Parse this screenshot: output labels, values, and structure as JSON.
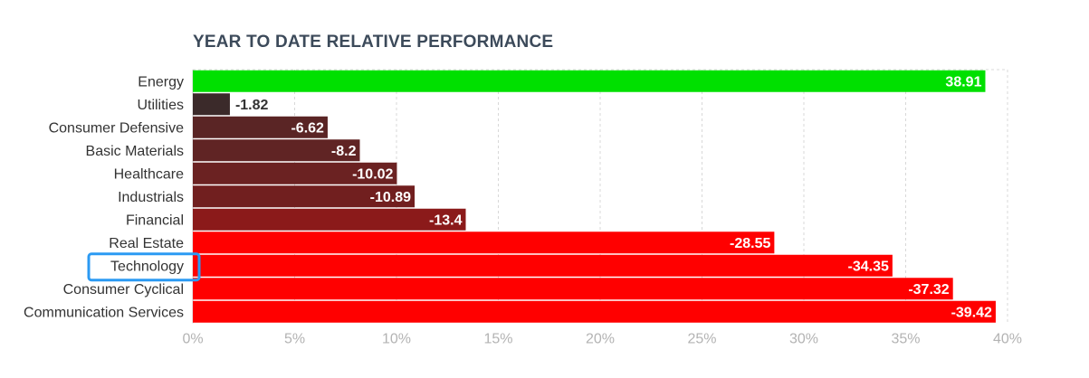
{
  "chart_data": {
    "type": "bar",
    "orientation": "horizontal",
    "title": "YEAR TO DATE RELATIVE PERFORMANCE",
    "categories": [
      "Energy",
      "Utilities",
      "Consumer Defensive",
      "Basic Materials",
      "Healthcare",
      "Industrials",
      "Financial",
      "Real Estate",
      "Technology",
      "Consumer Cyclical",
      "Communication Services"
    ],
    "values": [
      38.91,
      -1.82,
      -6.62,
      -8.2,
      -10.02,
      -10.89,
      -13.4,
      -28.55,
      -34.35,
      -37.32,
      -39.42
    ],
    "value_labels": [
      "38.91",
      "-1.82",
      "-6.62",
      "-8.2",
      "-10.02",
      "-10.89",
      "-13.4",
      "-28.55",
      "-34.35",
      "-37.32",
      "-39.42"
    ],
    "bar_colors": [
      "#00e000",
      "#3b2a2a",
      "#5a2525",
      "#602424",
      "#6b2222",
      "#711f1f",
      "#8b1a1a",
      "#ff0000",
      "#ff0000",
      "#ff0000",
      "#ff0000"
    ],
    "highlighted_category": "Technology",
    "highlight_color": "#2b9af3",
    "xlim": [
      0,
      40
    ],
    "xticks": [
      0,
      5,
      10,
      15,
      20,
      25,
      30,
      35,
      40
    ],
    "xtick_labels": [
      "0%",
      "5%",
      "10%",
      "15%",
      "20%",
      "25%",
      "30%",
      "35%",
      "40%"
    ],
    "xlabel": "",
    "ylabel": "",
    "grid": true,
    "legend": "none"
  }
}
